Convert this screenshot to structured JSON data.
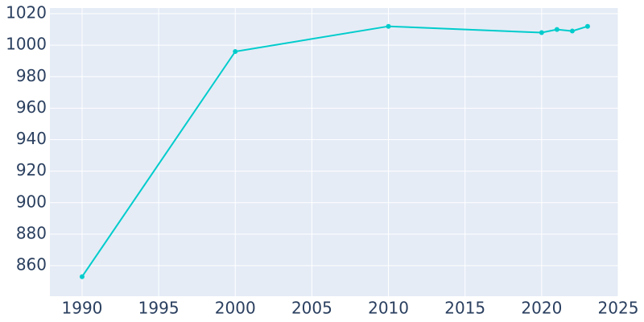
{
  "chart_data": {
    "type": "line",
    "x": [
      1990,
      2000,
      2010,
      2020,
      2021,
      2022,
      2023
    ],
    "series": [
      {
        "color": "#00cccc",
        "values": [
          853,
          996,
          1012,
          1008,
          1010,
          1009,
          1012
        ]
      }
    ],
    "xlim": [
      1987.9,
      2025
    ],
    "xticks": [
      1990,
      1995,
      2000,
      2005,
      2010,
      2015,
      2020,
      2025
    ],
    "ylim": [
      840.6,
      1023.6
    ],
    "yticks": [
      860,
      880,
      900,
      920,
      940,
      960,
      980,
      1000,
      1020
    ],
    "grid": true
  }
}
